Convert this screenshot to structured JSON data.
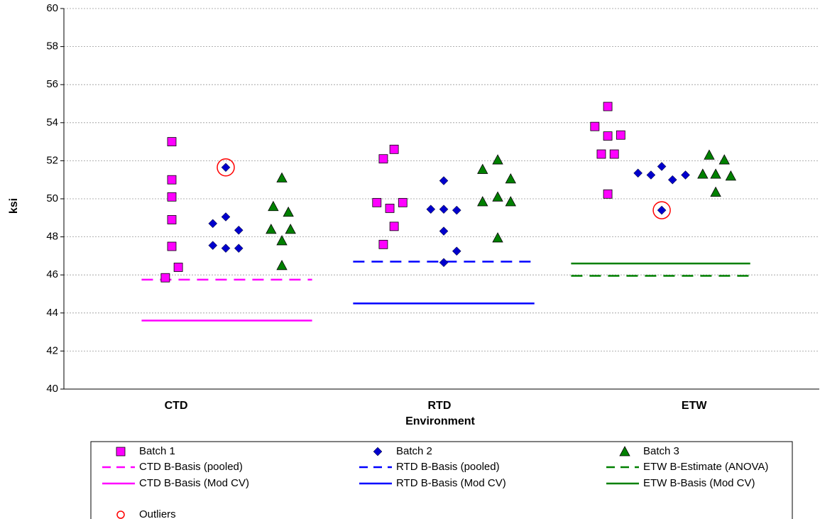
{
  "chart_data": {
    "type": "scatter",
    "y_label": "ksi",
    "x_label": "Environment",
    "xlim": [
      0,
      3.5
    ],
    "ylim": [
      40,
      60
    ],
    "yticks": [
      40,
      42,
      44,
      46,
      48,
      50,
      52,
      54,
      56,
      58,
      60
    ],
    "xticks": [
      {
        "value": 0.52,
        "label": "CTD"
      },
      {
        "value": 1.74,
        "label": "RTD"
      },
      {
        "value": 2.92,
        "label": "ETW"
      }
    ],
    "grid": true,
    "series": [
      {
        "name": "Batch 1",
        "color": "#ff00ff",
        "marker": "square",
        "x": [
          0.5,
          0.5,
          0.5,
          0.5,
          0.5,
          0.53,
          0.47,
          1.48,
          1.53,
          1.45,
          1.51,
          1.57,
          1.53,
          1.48,
          2.52,
          2.46,
          2.52,
          2.58,
          2.49,
          2.55,
          2.52
        ],
        "values": [
          53.0,
          51.0,
          50.1,
          48.9,
          47.5,
          46.4,
          45.85,
          52.1,
          52.6,
          49.8,
          49.5,
          49.8,
          48.55,
          47.6,
          54.85,
          53.8,
          53.3,
          53.35,
          52.35,
          52.35,
          50.25
        ]
      },
      {
        "name": "Batch 2",
        "color": "#0000cc",
        "marker": "diamond",
        "x": [
          0.75,
          0.69,
          0.75,
          0.81,
          0.69,
          0.75,
          0.81,
          1.76,
          1.7,
          1.76,
          1.82,
          1.76,
          1.82,
          1.76,
          2.66,
          2.72,
          2.77,
          2.82,
          2.88,
          2.77
        ],
        "values": [
          51.65,
          48.7,
          49.05,
          48.35,
          47.55,
          47.4,
          47.4,
          50.95,
          49.45,
          49.45,
          49.4,
          48.3,
          47.25,
          46.65,
          51.35,
          51.25,
          51.7,
          51.0,
          51.25,
          49.4
        ]
      },
      {
        "name": "Batch 3",
        "color": "#008000",
        "marker": "triangle",
        "x": [
          1.01,
          0.97,
          1.04,
          0.96,
          1.05,
          1.01,
          1.01,
          1.94,
          2.01,
          1.94,
          2.01,
          2.07,
          2.07,
          2.01,
          2.99,
          3.06,
          2.96,
          3.02,
          3.09,
          3.02
        ],
        "values": [
          51.1,
          49.6,
          49.3,
          48.4,
          48.4,
          47.8,
          46.5,
          51.55,
          52.05,
          49.85,
          50.1,
          49.85,
          51.05,
          47.95,
          52.3,
          52.05,
          51.3,
          51.3,
          51.2,
          50.35
        ]
      },
      {
        "name": "Outliers",
        "color": "#ff0000",
        "marker": "circle",
        "x": [
          0.75,
          2.77
        ],
        "values": [
          51.65,
          49.4
        ]
      }
    ],
    "lines": [
      {
        "name": "CTD B-Basis (pooled)",
        "color": "#ff00ff",
        "dashed": true,
        "x": [
          0.36,
          1.15
        ],
        "value": 45.75
      },
      {
        "name": "RTD B-Basis (pooled)",
        "color": "#0000ff",
        "dashed": true,
        "x": [
          1.34,
          2.18
        ],
        "value": 46.7
      },
      {
        "name": "ETW B-Estimate (ANOVA)",
        "color": "#008000",
        "dashed": true,
        "x": [
          2.35,
          3.18
        ],
        "value": 45.95
      },
      {
        "name": "CTD B-Basis (Mod CV)",
        "color": "#ff00ff",
        "dashed": false,
        "x": [
          0.36,
          1.15
        ],
        "value": 43.6
      },
      {
        "name": "RTD B-Basis (Mod CV)",
        "color": "#0000ff",
        "dashed": false,
        "x": [
          1.34,
          2.18
        ],
        "value": 44.5
      },
      {
        "name": "ETW B-Basis (Mod CV)",
        "color": "#008000",
        "dashed": false,
        "x": [
          2.35,
          3.18
        ],
        "value": 46.6
      }
    ]
  }
}
